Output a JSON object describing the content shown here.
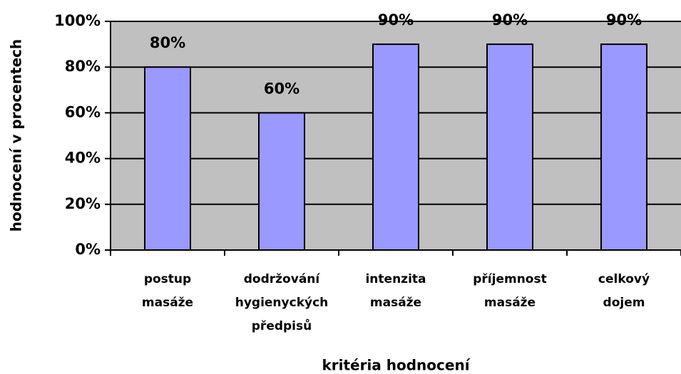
{
  "chart_data": {
    "type": "bar",
    "categories": [
      "postup masáže",
      "dodržování hygienyckých předpisů",
      "intenzita masáže",
      "příjemnost masáže",
      "celkový dojem"
    ],
    "values": [
      80,
      60,
      90,
      90,
      90
    ],
    "value_labels": [
      "80%",
      "60%",
      "90%",
      "90%",
      "90%"
    ],
    "color": "#9999ff",
    "ylim": [
      0,
      100
    ],
    "yticks": [
      {
        "value": 0,
        "label": "0%"
      },
      {
        "value": 20,
        "label": "20%"
      },
      {
        "value": 40,
        "label": "40%"
      },
      {
        "value": 60,
        "label": "60%"
      },
      {
        "value": 80,
        "label": "80%"
      },
      {
        "value": 100,
        "label": "100%"
      }
    ],
    "grid": true,
    "x_label": "kritéria hodnocení",
    "y_label": "hodnocení v procentech"
  }
}
